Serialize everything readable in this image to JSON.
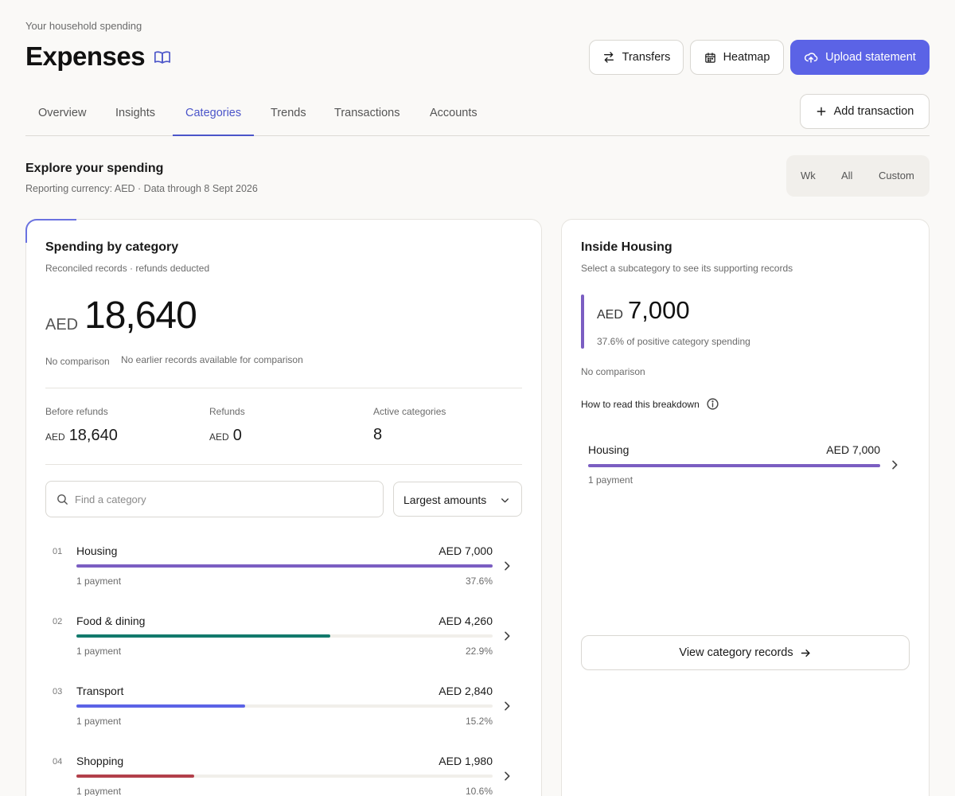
{
  "header": {
    "eyebrow": "Your household spending",
    "title": "Expenses",
    "buttons": {
      "transfers": "Transfers",
      "heatmap": "Heatmap",
      "upload": "Upload statement",
      "add": "Add transaction"
    }
  },
  "tabs": [
    {
      "label": "Overview",
      "active": false
    },
    {
      "label": "Insights",
      "active": false
    },
    {
      "label": "Categories",
      "active": true
    },
    {
      "label": "Trends",
      "active": false
    },
    {
      "label": "Transactions",
      "active": false
    },
    {
      "label": "Accounts",
      "active": false
    }
  ],
  "explore": {
    "title": "Explore your spending",
    "subtitle": "Reporting currency: AED · Data through 8 Sept 2026",
    "ranges": [
      "Wk",
      "All",
      "Custom"
    ]
  },
  "spending": {
    "title": "Spending by category",
    "subtitle": "Reconciled records · refunds deducted",
    "currency": "AED",
    "total": "18,640",
    "comparison_label": "No comparison",
    "comparison_note": "No earlier records available for comparison",
    "stats": {
      "before_refunds_label": "Before refunds",
      "before_refunds_currency": "AED",
      "before_refunds_value": "18,640",
      "refunds_label": "Refunds",
      "refunds_currency": "AED",
      "refunds_value": "0",
      "active_label": "Active categories",
      "active_value": "8"
    },
    "search_placeholder": "Find a category",
    "sort_selected": "Largest amounts",
    "categories": [
      {
        "idx": "01",
        "name": "Housing",
        "amount": "AED 7,000",
        "payments": "1 payment",
        "pct": "37.6%",
        "share": 1.0,
        "color": "#7b5ec2"
      },
      {
        "idx": "02",
        "name": "Food & dining",
        "amount": "AED 4,260",
        "payments": "1 payment",
        "pct": "22.9%",
        "share": 0.609,
        "color": "#127a6c"
      },
      {
        "idx": "03",
        "name": "Transport",
        "amount": "AED 2,840",
        "payments": "1 payment",
        "pct": "15.2%",
        "share": 0.406,
        "color": "#5b63e6"
      },
      {
        "idx": "04",
        "name": "Shopping",
        "amount": "AED 1,980",
        "payments": "1 payment",
        "pct": "10.6%",
        "share": 0.283,
        "color": "#b2404a"
      }
    ]
  },
  "detail": {
    "title": "Inside Housing",
    "subtitle": "Select a subcategory to see its supporting records",
    "currency": "AED",
    "amount": "7,000",
    "share_note": "37.6% of positive category spending",
    "comparison_label": "No comparison",
    "help_text": "How to read this breakdown",
    "sub": {
      "name": "Housing",
      "amount": "AED 7,000",
      "payments": "1 payment",
      "share": 1.0,
      "color": "#7b5ec2"
    },
    "view_button": "View category records"
  }
}
